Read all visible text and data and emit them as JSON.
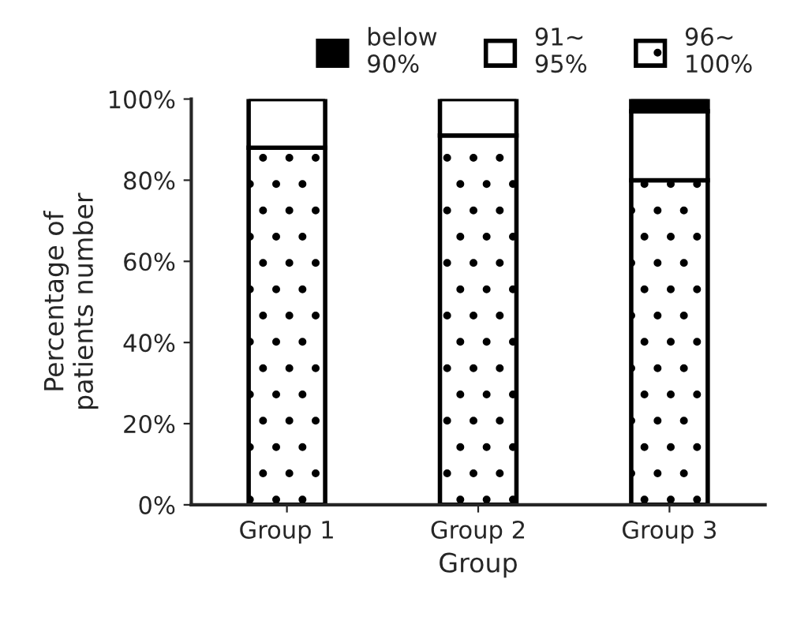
{
  "chart_data": {
    "type": "bar",
    "stacked": true,
    "xlabel": "Group",
    "ylabel": "Percentage of\npatients number",
    "categories": [
      "Group 1",
      "Group 2",
      "Group 3"
    ],
    "series": [
      {
        "name": "96∼\n100%",
        "color": "#000000",
        "values": [
          88,
          91,
          80
        ]
      },
      {
        "name": "91∼\n95%",
        "color": "#ffffff",
        "values": [
          12,
          9,
          17
        ]
      },
      {
        "name": "below\n90%",
        "color": "#000000",
        "values": [
          0,
          0,
          3
        ]
      }
    ],
    "ylim": [
      0,
      100
    ],
    "yticks": [
      {
        "value": 0,
        "label": "0%"
      },
      {
        "value": 20,
        "label": "20%"
      },
      {
        "value": 40,
        "label": "40%"
      },
      {
        "value": 60,
        "label": "60%"
      },
      {
        "value": 80,
        "label": "80%"
      },
      {
        "value": 100,
        "label": "100%"
      }
    ],
    "grid": false,
    "legend": "top"
  }
}
